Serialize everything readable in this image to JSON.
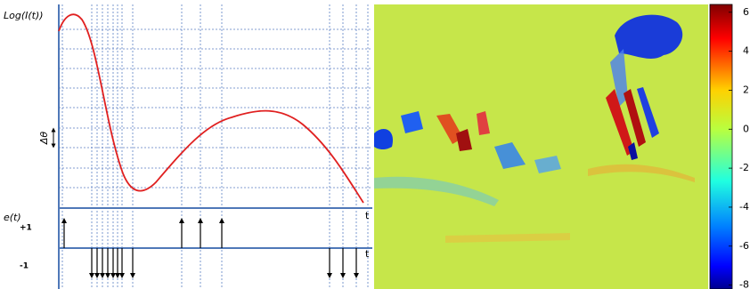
{
  "diagram": {
    "y_label": "Log(I(t))",
    "threshold_label": "Δθ",
    "event_label": "e(t)",
    "positive_label": "+1",
    "negative_label": "-1",
    "time_label_top": "t",
    "time_label_bottom": "t"
  },
  "colorbar": {
    "clim": [
      -8.2,
      6.4
    ],
    "ticks": [
      6,
      4,
      2,
      0,
      -2,
      -4,
      -6,
      -8
    ]
  }
}
